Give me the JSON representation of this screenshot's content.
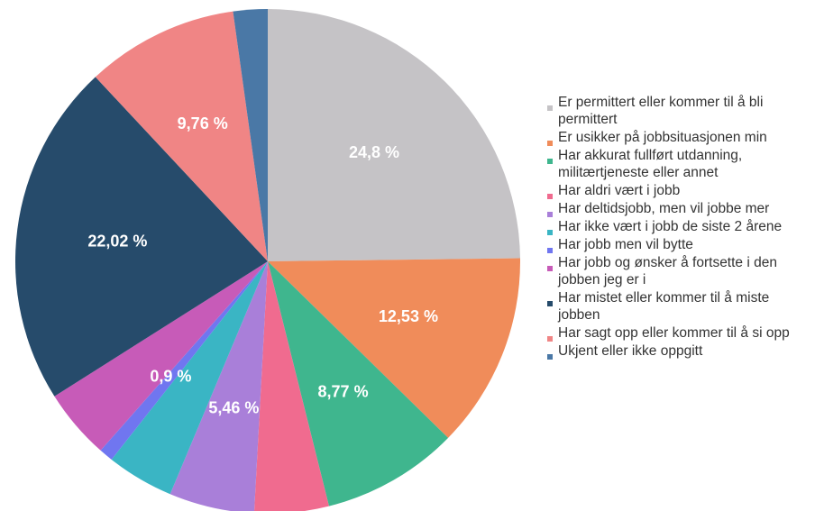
{
  "chart_data": {
    "type": "pie",
    "categories": [
      "Er permittert eller kommer til å bli permittert",
      "Er usikker på jobbsituasjonen min",
      "Har akkurat fullført utdanning, militærtjeneste eller annet",
      "Har aldri vært i jobb",
      "Har deltidsjobb, men vil jobbe mer",
      "Har ikke vært i jobb de siste 2 årene",
      "Har jobb men vil bytte",
      "Har jobb og ønsker å fortsette i den jobben jeg er i",
      "Har mistet eller kommer til å miste jobben",
      "Har sagt opp eller kommer til å si opp",
      "Ukjent eller ikke oppgitt"
    ],
    "values": [
      24.8,
      12.53,
      8.77,
      4.76,
      5.46,
      4.3,
      0.9,
      4.5,
      22.02,
      9.76,
      2.2
    ],
    "value_labels": [
      "24,8 %",
      "12,53 %",
      "8,77 %",
      null,
      "5,46 %",
      null,
      "0,9 %",
      null,
      "22,02 %",
      "9,76 %",
      null
    ],
    "colors": [
      "#c5c3c6",
      "#f08c5a",
      "#3fb68e",
      "#f06b8f",
      "#a97fd9",
      "#3ab5c4",
      "#7076f0",
      "#c75bb8",
      "#264b6b",
      "#f08585",
      "#4a78a6"
    ]
  }
}
